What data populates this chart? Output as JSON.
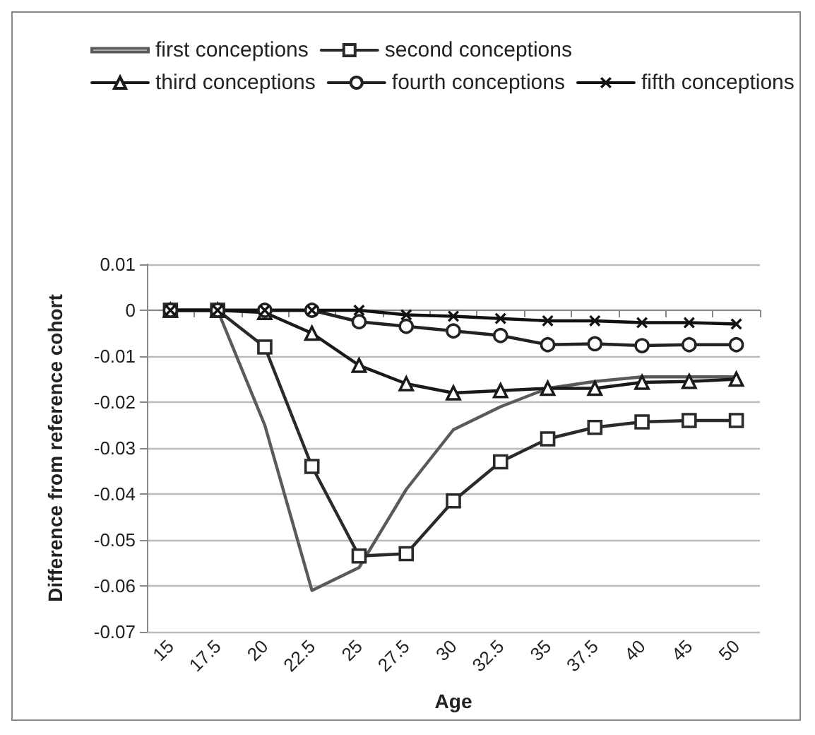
{
  "chart_data": {
    "type": "line",
    "xlabel": "Age",
    "ylabel": "Difference from reference cohort",
    "categories": [
      "15",
      "17.5",
      "20",
      "22.5",
      "25",
      "27.5",
      "30",
      "32.5",
      "35",
      "37.5",
      "40",
      "45",
      "50"
    ],
    "series": [
      {
        "name": "first conceptions",
        "color": "#5a5a5a",
        "marker": "none",
        "values": [
          0,
          0,
          -0.025,
          -0.061,
          -0.056,
          -0.039,
          -0.026,
          -0.021,
          -0.017,
          -0.0155,
          -0.0145,
          -0.0145,
          -0.0145
        ]
      },
      {
        "name": "second conceptions",
        "color": "#2a2a2a",
        "marker": "square",
        "values": [
          0,
          0,
          -0.008,
          -0.034,
          -0.0535,
          -0.053,
          -0.0415,
          -0.033,
          -0.028,
          -0.0255,
          -0.0243,
          -0.024,
          -0.024
        ]
      },
      {
        "name": "third conceptions",
        "color": "#1a1a1a",
        "marker": "triangle",
        "values": [
          0,
          0,
          -0.0005,
          -0.005,
          -0.012,
          -0.016,
          -0.018,
          -0.0175,
          -0.017,
          -0.017,
          -0.0157,
          -0.0155,
          -0.015
        ]
      },
      {
        "name": "fourth conceptions",
        "color": "#222222",
        "marker": "circle",
        "values": [
          0,
          0,
          0,
          0,
          -0.0025,
          -0.0035,
          -0.0045,
          -0.0055,
          -0.0075,
          -0.0073,
          -0.0077,
          -0.0075,
          -0.0075
        ]
      },
      {
        "name": "fifth conceptions",
        "color": "#111111",
        "marker": "cross",
        "values": [
          0,
          0,
          0,
          0,
          0,
          -0.001,
          -0.0013,
          -0.0018,
          -0.0023,
          -0.0023,
          -0.0027,
          -0.0027,
          -0.003
        ]
      }
    ],
    "ylim": [
      -0.07,
      0.01
    ],
    "yticks": [
      -0.07,
      -0.06,
      -0.05,
      -0.04,
      -0.03,
      -0.02,
      -0.01,
      0,
      0.01
    ],
    "grid": "y",
    "legend": "top",
    "line_style": "solid"
  }
}
